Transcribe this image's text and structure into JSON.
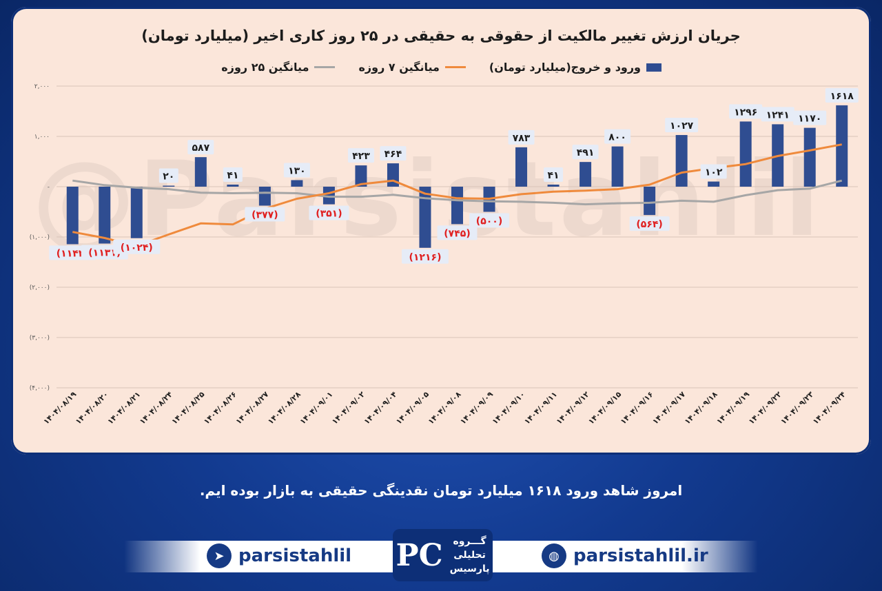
{
  "watermark": "@Parsistahlil",
  "chart_data": {
    "type": "bar",
    "title": "جریان ارزش تغییر مالکیت از حقوقی به حقیقی در ۲۵ روز کاری اخیر (میلیارد تومان)",
    "legend": {
      "placement": "top",
      "items": [
        "ورود و خروج(میلیارد تومان)",
        "میانگین ۷ روزه",
        "میانگین ۲۵ روزه"
      ]
    },
    "categories": [
      "۱۴۰۴/۰۸/۱۹",
      "۱۴۰۴/۰۸/۲۰",
      "۱۴۰۴/۰۸/۲۱",
      "۱۴۰۴/۰۸/۲۴",
      "۱۴۰۴/۰۸/۲۵",
      "۱۴۰۴/۰۸/۲۶",
      "۱۴۰۴/۰۸/۲۷",
      "۱۴۰۴/۰۸/۲۸",
      "۱۴۰۴/۰۹/۰۱",
      "۱۴۰۴/۰۹/۰۲",
      "۱۴۰۴/۰۹/۰۴",
      "۱۴۰۴/۰۹/۰۵",
      "۱۴۰۴/۰۹/۰۸",
      "۱۴۰۴/۰۹/۰۹",
      "۱۴۰۴/۰۹/۱۰",
      "۱۴۰۴/۰۹/۱۱",
      "۱۴۰۴/۰۹/۱۲",
      "۱۴۰۴/۰۹/۱۵",
      "۱۴۰۴/۰۹/۱۶",
      "۱۴۰۴/۰۹/۱۷",
      "۱۴۰۴/۰۹/۱۸",
      "۱۴۰۴/۰۹/۱۹",
      "۱۴۰۴/۰۹/۲۲",
      "۱۴۰۴/۰۹/۲۳",
      "۱۴۰۴/۰۹/۲۴"
    ],
    "series": [
      {
        "name": "ورود و خروج(میلیارد تومان)",
        "kind": "bar",
        "color": "#2f4d91",
        "values": [
          -1144,
          -1131,
          -1024,
          20,
          587,
          41,
          -377,
          130,
          -351,
          423,
          464,
          -1216,
          -745,
          -500,
          783,
          41,
          491,
          800,
          -564,
          1027,
          102,
          1296,
          1241,
          1170,
          1618
        ],
        "labels": [
          "(۱۱۴۴)",
          "(۱۱۳۱)",
          "(۱۰۲۴)",
          "۲۰",
          "۵۸۷",
          "۴۱",
          "(۳۷۷)",
          "۱۳۰",
          "(۳۵۱)",
          "۴۲۳",
          "۴۶۴",
          "(۱۲۱۶)",
          "(۷۴۵)",
          "(۵۰۰)",
          "۷۸۳",
          "۴۱",
          "۴۹۱",
          "۸۰۰",
          "(۵۶۴)",
          "۱۰۲۷",
          "۱۰۲",
          "۱۲۹۶",
          "۱۲۴۱",
          "۱۱۷۰",
          "۱۶۱۸"
        ]
      },
      {
        "name": "میانگین ۷ روزه",
        "kind": "line",
        "color": "#ef8a3c",
        "values": [
          -900,
          -1020,
          -1180,
          -950,
          -730,
          -750,
          -440,
          -240,
          -130,
          50,
          120,
          -140,
          -230,
          -240,
          -150,
          -100,
          -80,
          -50,
          40,
          280,
          370,
          450,
          610,
          720,
          840
        ]
      },
      {
        "name": "میانگین ۲۵ روزه",
        "kind": "line",
        "color": "#a6a6a6",
        "values": [
          120,
          30,
          -20,
          -50,
          -120,
          -130,
          -120,
          -130,
          -200,
          -200,
          -160,
          -230,
          -270,
          -290,
          -300,
          -320,
          -350,
          -330,
          -320,
          -280,
          -300,
          -170,
          -70,
          -40,
          120
        ]
      }
    ],
    "ylim": [
      -4000,
      2000
    ],
    "yticks": [
      2000,
      1000,
      0,
      -1000,
      -2000,
      -3000,
      -4000
    ],
    "ytick_labels": [
      "۲,۰۰۰",
      "۱,۰۰۰",
      "-",
      "(۱,۰۰۰)",
      "(۲,۰۰۰)",
      "(۳,۰۰۰)",
      "(۴,۰۰۰)"
    ],
    "grid": true
  },
  "footer": {
    "caption": "امروز شاهد ورود ۱۶۱۸ میلیارد تومان نقدینگی حقیقی به بازار بوده ایم.",
    "telegram_handle": "parsistahlil",
    "website": "parsistahlil.ir",
    "logo_mark": "PC",
    "logo_lines": [
      "گـــروه",
      "تحلیلی",
      "پارسیس"
    ]
  }
}
